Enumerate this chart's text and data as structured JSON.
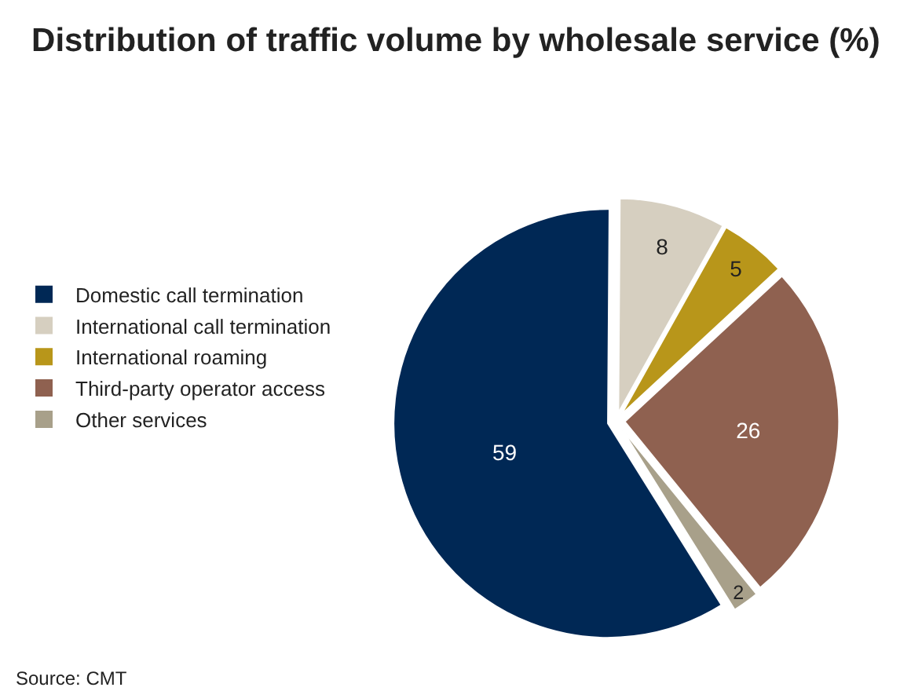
{
  "chart_data": {
    "type": "pie",
    "title": "Distribution of traffic volume by wholesale service (%)",
    "categories": [
      "Domestic call termination",
      "International call termination",
      "International roaming",
      "Third-party operator access",
      "Other services"
    ],
    "values": [
      59,
      8,
      5,
      26,
      2
    ],
    "colors": [
      "#002855",
      "#d6cfc0",
      "#b8961a",
      "#8f6150",
      "#a8a08a"
    ],
    "data_labels": true,
    "legend": "left",
    "annotations": [
      "Source: CMT"
    ]
  }
}
